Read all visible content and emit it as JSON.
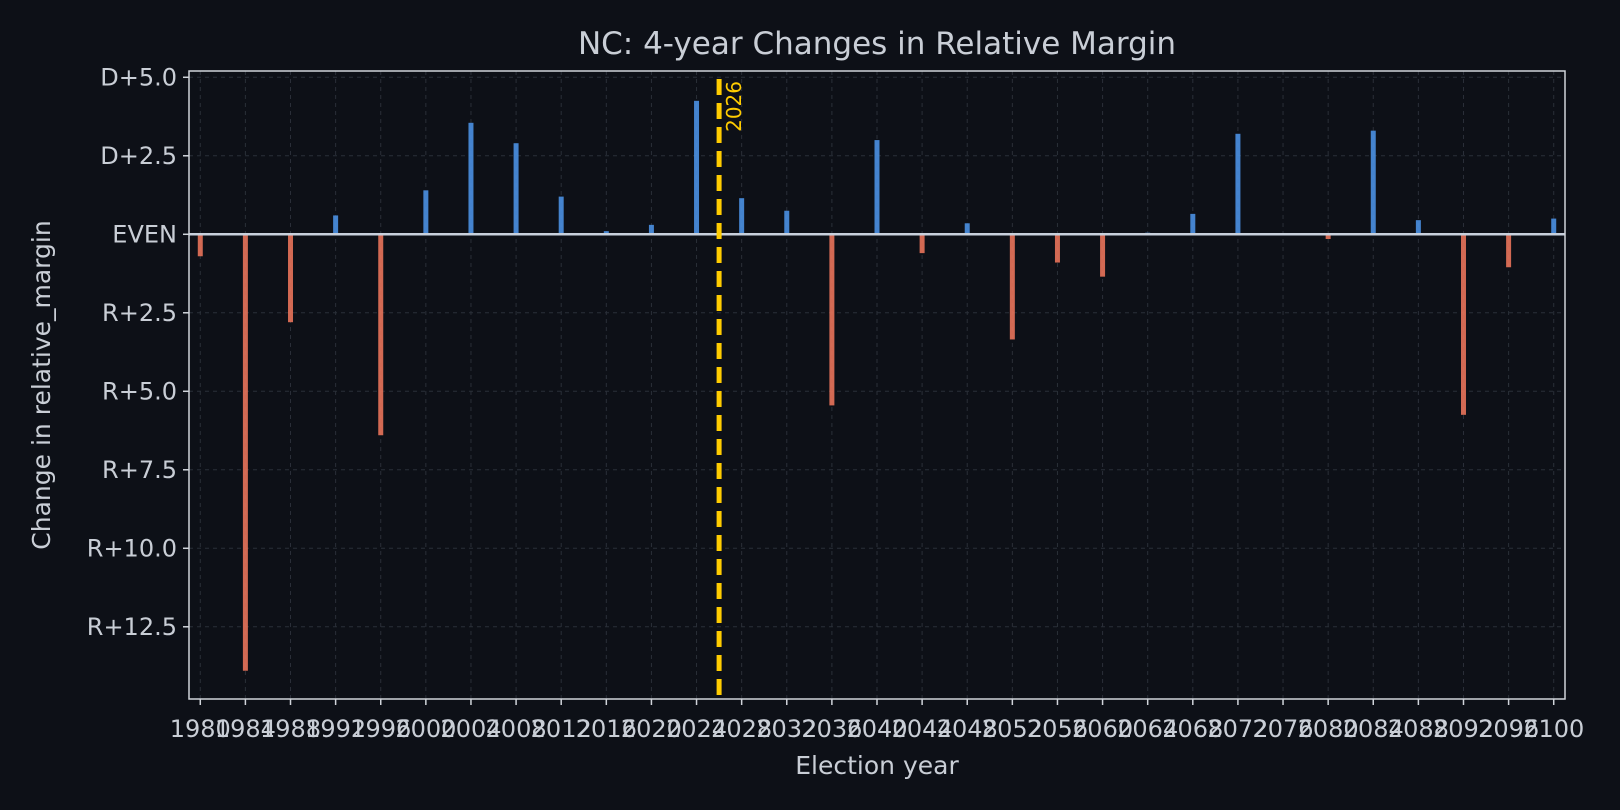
{
  "chart_data": {
    "type": "bar",
    "title": "NC: 4-year Changes in Relative Margin",
    "xlabel": "Election year",
    "ylabel": "Change in relative_margin",
    "ylim": [
      -14.8,
      5.2
    ],
    "xlim": [
      1979,
      2101
    ],
    "x": [
      1980,
      1984,
      1988,
      1992,
      1996,
      2000,
      2004,
      2008,
      2012,
      2016,
      2020,
      2024,
      2028,
      2032,
      2036,
      2040,
      2044,
      2048,
      2052,
      2056,
      2060,
      2064,
      2068,
      2072,
      2076,
      2080,
      2084,
      2088,
      2092,
      2096,
      2100
    ],
    "values": [
      -0.7,
      -13.9,
      -2.8,
      0.6,
      -6.4,
      1.4,
      3.55,
      2.9,
      1.2,
      0.1,
      0.3,
      4.25,
      1.15,
      0.75,
      -5.45,
      3.0,
      -0.6,
      0.35,
      -3.35,
      -0.9,
      -1.35,
      0.05,
      0.65,
      3.2,
      0.0,
      -0.15,
      3.3,
      0.45,
      -5.75,
      -1.05,
      0.5
    ],
    "y_ticks": [
      {
        "value": 5,
        "label": "D+5.0"
      },
      {
        "value": 2.5,
        "label": "D+2.5"
      },
      {
        "value": 0,
        "label": "EVEN"
      },
      {
        "value": -2.5,
        "label": "R+2.5"
      },
      {
        "value": -5,
        "label": "R+5.0"
      },
      {
        "value": -7.5,
        "label": "R+7.5"
      },
      {
        "value": -10,
        "label": "R+10.0"
      },
      {
        "value": -12.5,
        "label": "R+12.5"
      }
    ],
    "x_ticks": [
      1980,
      1984,
      1988,
      1992,
      1996,
      2000,
      2004,
      2008,
      2012,
      2016,
      2020,
      2024,
      2028,
      2032,
      2036,
      2040,
      2044,
      2048,
      2052,
      2056,
      2060,
      2064,
      2068,
      2072,
      2076,
      2080,
      2084,
      2088,
      2092,
      2096,
      2100
    ],
    "marker": {
      "x": 2026,
      "label": "2026",
      "color": "#ffcc00"
    },
    "colors": {
      "positive": "#4a90e2",
      "negative": "#e8735a",
      "background": "#0d1017",
      "zero_line": "#c8d0dc"
    },
    "grid": true
  }
}
